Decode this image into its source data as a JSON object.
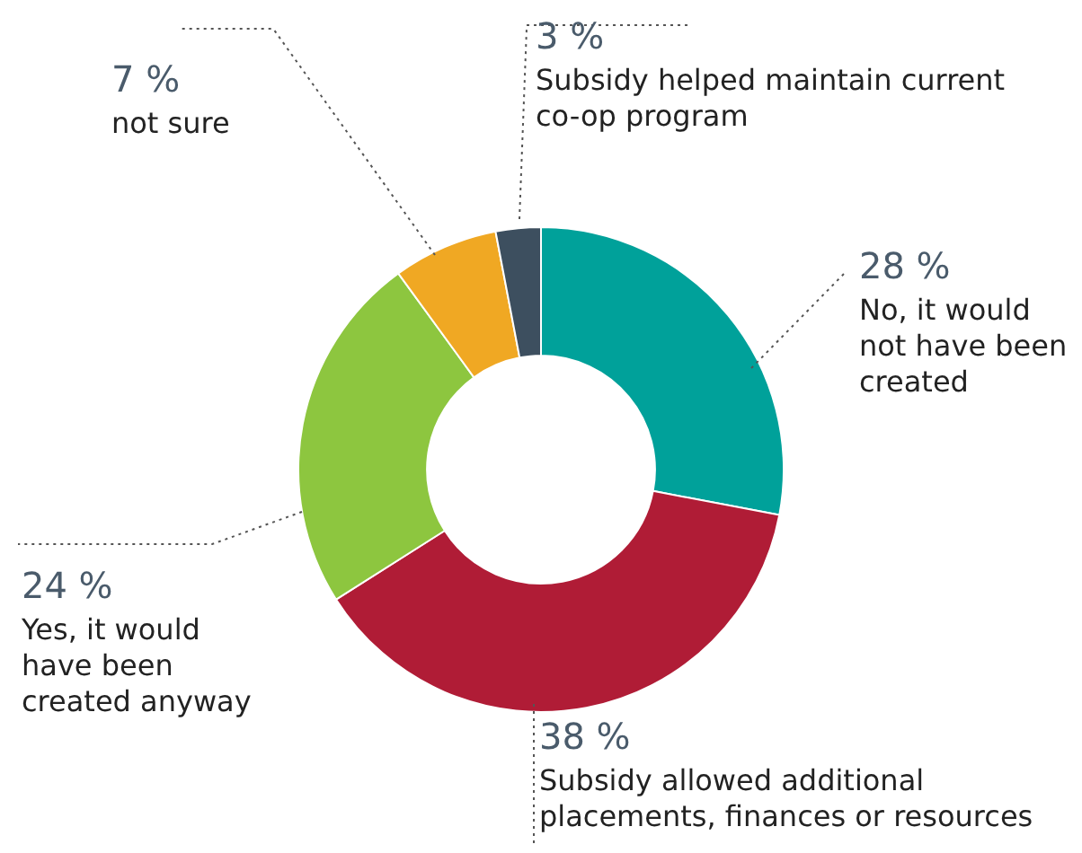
{
  "chart_data": {
    "type": "donut",
    "categories": [
      "No, it would not have been created",
      "Subsidy allowed additional placements, finances or resources",
      "Yes, it would have been created anyway",
      "not sure",
      "Subsidy helped maintain current co-op program"
    ],
    "values": [
      28,
      38,
      24,
      7,
      3
    ],
    "value_labels": [
      "28 %",
      "38 %",
      "24 %",
      "7 %",
      "3 %"
    ],
    "colors": [
      "#00a19a",
      "#b01c36",
      "#8dc63f",
      "#f0a823",
      "#3d4f5f"
    ],
    "legend": false
  }
}
